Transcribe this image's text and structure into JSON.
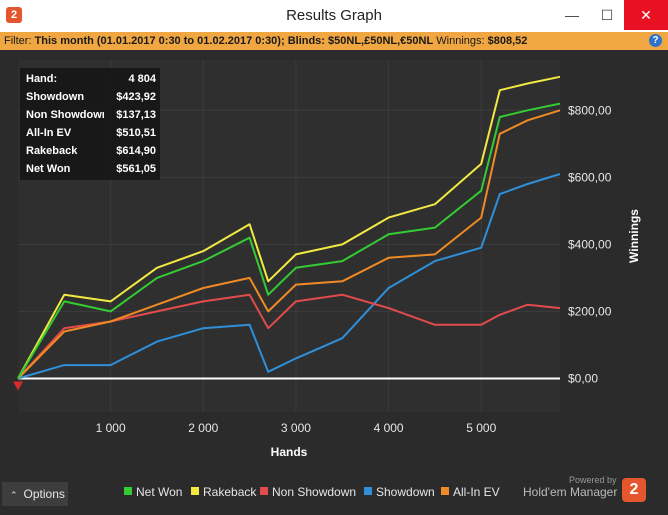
{
  "window": {
    "title": "Results Graph",
    "logo_text": "2",
    "min_glyph": "—",
    "max_glyph": "☐",
    "close_glyph": "✕"
  },
  "filter": {
    "prefix": "Filter:",
    "period": "This month (01.01.2017 0:30 to 01.02.2017 0:30);",
    "blinds_label": "Blinds:",
    "blinds_value": "$50NL,£50NL,€50NL",
    "winnings_label": "Winnings:",
    "winnings_value": "$808,52",
    "help_glyph": "?"
  },
  "stats": [
    {
      "label": "Hand:",
      "value": "4 804"
    },
    {
      "label": "Showdown",
      "value": "$423,92"
    },
    {
      "label": "Non Showdown",
      "value": "$137,13"
    },
    {
      "label": "All-In EV",
      "value": "$510,51"
    },
    {
      "label": "Rakeback",
      "value": "$614,90"
    },
    {
      "label": "Net Won",
      "value": "$561,05"
    }
  ],
  "footer": {
    "options_label": "Options",
    "powered_by": "Powered by",
    "brand": "Hold'em Manager",
    "brand_logo": "2"
  },
  "colors": {
    "net_won": "#33cc33",
    "rakeback": "#f2ea42",
    "non_showdown": "#e24b4b",
    "showdown": "#2f8fd8",
    "all_in_ev": "#f08a24"
  },
  "chart_data": {
    "type": "line",
    "xlabel": "Hands",
    "ylabel": "Winnings",
    "x_ticks": [
      "1 000",
      "2 000",
      "3 000",
      "4 000",
      "5 000"
    ],
    "y_ticks": [
      "$0,00",
      "$200,00",
      "$400,00",
      "$600,00",
      "$800,00"
    ],
    "xlim": [
      0,
      5850
    ],
    "ylim": [
      -100,
      950
    ],
    "legend": "bottom",
    "grid": true,
    "x": [
      0,
      500,
      1000,
      1500,
      2000,
      2500,
      2700,
      3000,
      3500,
      4000,
      4500,
      5000,
      5200,
      5500,
      5850
    ],
    "series": [
      {
        "name": "Net Won",
        "values": [
          0,
          230,
          200,
          300,
          350,
          420,
          250,
          330,
          350,
          430,
          450,
          560,
          780,
          800,
          820
        ]
      },
      {
        "name": "Rakeback",
        "values": [
          0,
          250,
          230,
          330,
          380,
          460,
          290,
          370,
          400,
          480,
          520,
          640,
          860,
          880,
          900
        ]
      },
      {
        "name": "Non Showdown",
        "values": [
          0,
          150,
          170,
          200,
          230,
          250,
          150,
          230,
          250,
          210,
          160,
          160,
          190,
          220,
          210
        ]
      },
      {
        "name": "Showdown",
        "values": [
          0,
          40,
          40,
          110,
          150,
          160,
          20,
          60,
          120,
          270,
          350,
          390,
          550,
          580,
          610
        ]
      },
      {
        "name": "All-In EV",
        "values": [
          0,
          140,
          170,
          220,
          270,
          300,
          200,
          280,
          290,
          360,
          370,
          480,
          730,
          770,
          800
        ]
      }
    ]
  }
}
